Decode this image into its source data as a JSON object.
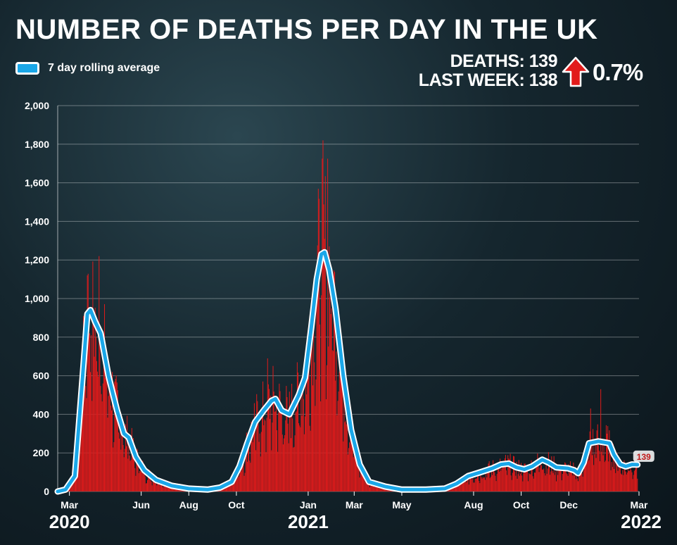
{
  "header": {
    "title": "NUMBER OF DEATHS PER DAY IN THE UK",
    "deaths_label": "DEATHS: 139",
    "last_week_label": "LAST WEEK: 138",
    "change_pct": "0.7%"
  },
  "legend": {
    "label": "7 day rolling average"
  },
  "colors": {
    "bars": "#e01b1b",
    "line": "#1aa7e8",
    "line_outline": "#ffffff",
    "arrow": "#e21b1b"
  },
  "chart_data": {
    "type": "bar",
    "title": "NUMBER OF DEATHS PER DAY IN THE UK",
    "ylim": [
      0,
      2000
    ],
    "y_ticks": [
      "0",
      "200",
      "400",
      "600",
      "800",
      "1,000",
      "1,200",
      "1,400",
      "1,600",
      "1,800",
      "2,000"
    ],
    "x_range": [
      "2020-02-15",
      "2022-03-01"
    ],
    "x_ticks": [
      {
        "label": "Mar",
        "date": "2020-03-01"
      },
      {
        "label": "Jun",
        "date": "2020-06-01"
      },
      {
        "label": "Aug",
        "date": "2020-08-01"
      },
      {
        "label": "Oct",
        "date": "2020-10-01"
      },
      {
        "label": "Jan",
        "date": "2021-01-01"
      },
      {
        "label": "Mar",
        "date": "2021-03-01"
      },
      {
        "label": "May",
        "date": "2021-05-01"
      },
      {
        "label": "Aug",
        "date": "2021-08-01"
      },
      {
        "label": "Oct",
        "date": "2021-10-01"
      },
      {
        "label": "Dec",
        "date": "2021-12-01"
      },
      {
        "label": "Mar",
        "date": "2022-03-01"
      }
    ],
    "year_labels": [
      {
        "label": "2020",
        "date": "2020-03-01"
      },
      {
        "label": "2021",
        "date": "2021-01-01"
      },
      {
        "label": "2022",
        "date": "2022-03-01"
      }
    ],
    "grid": true,
    "legend_position": "top-left",
    "series": [
      {
        "name": "7 day rolling average",
        "type": "line",
        "points": [
          [
            "2020-02-15",
            0
          ],
          [
            "2020-02-25",
            10
          ],
          [
            "2020-03-08",
            80
          ],
          [
            "2020-03-18",
            600
          ],
          [
            "2020-03-24",
            920
          ],
          [
            "2020-03-28",
            940
          ],
          [
            "2020-04-03",
            880
          ],
          [
            "2020-04-10",
            820
          ],
          [
            "2020-04-20",
            600
          ],
          [
            "2020-05-01",
            420
          ],
          [
            "2020-05-10",
            300
          ],
          [
            "2020-05-16",
            280
          ],
          [
            "2020-05-25",
            180
          ],
          [
            "2020-06-05",
            110
          ],
          [
            "2020-06-20",
            60
          ],
          [
            "2020-07-10",
            30
          ],
          [
            "2020-08-01",
            15
          ],
          [
            "2020-08-25",
            10
          ],
          [
            "2020-09-10",
            20
          ],
          [
            "2020-09-25",
            50
          ],
          [
            "2020-10-05",
            130
          ],
          [
            "2020-10-15",
            250
          ],
          [
            "2020-10-25",
            360
          ],
          [
            "2020-11-05",
            420
          ],
          [
            "2020-11-15",
            470
          ],
          [
            "2020-11-20",
            480
          ],
          [
            "2020-11-28",
            420
          ],
          [
            "2020-12-08",
            400
          ],
          [
            "2020-12-20",
            500
          ],
          [
            "2020-12-28",
            590
          ],
          [
            "2021-01-05",
            850
          ],
          [
            "2021-01-12",
            1100
          ],
          [
            "2021-01-18",
            1230
          ],
          [
            "2021-01-22",
            1240
          ],
          [
            "2021-01-28",
            1150
          ],
          [
            "2021-02-05",
            950
          ],
          [
            "2021-02-15",
            600
          ],
          [
            "2021-02-25",
            320
          ],
          [
            "2021-03-08",
            140
          ],
          [
            "2021-03-20",
            50
          ],
          [
            "2021-04-10",
            25
          ],
          [
            "2021-05-01",
            10
          ],
          [
            "2021-06-01",
            10
          ],
          [
            "2021-06-25",
            15
          ],
          [
            "2021-07-10",
            40
          ],
          [
            "2021-07-25",
            80
          ],
          [
            "2021-08-10",
            100
          ],
          [
            "2021-08-25",
            120
          ],
          [
            "2021-09-05",
            140
          ],
          [
            "2021-09-15",
            145
          ],
          [
            "2021-09-25",
            125
          ],
          [
            "2021-10-05",
            115
          ],
          [
            "2021-10-15",
            130
          ],
          [
            "2021-10-28",
            165
          ],
          [
            "2021-11-05",
            150
          ],
          [
            "2021-11-15",
            125
          ],
          [
            "2021-11-30",
            120
          ],
          [
            "2021-12-08",
            110
          ],
          [
            "2021-12-13",
            95
          ],
          [
            "2021-12-20",
            150
          ],
          [
            "2021-12-27",
            250
          ],
          [
            "2022-01-08",
            260
          ],
          [
            "2022-01-15",
            255
          ],
          [
            "2022-01-22",
            250
          ],
          [
            "2022-01-28",
            190
          ],
          [
            "2022-02-05",
            140
          ],
          [
            "2022-02-12",
            130
          ],
          [
            "2022-02-20",
            140
          ],
          [
            "2022-02-27",
            139
          ]
        ],
        "last_value_label": "139"
      },
      {
        "name": "Daily deaths",
        "type": "bar",
        "peaks": [
          [
            "2020-03-24",
            1120
          ],
          [
            "2020-04-08",
            1220
          ],
          [
            "2021-01-20",
            1820
          ],
          [
            "2021-01-26",
            1725
          ],
          [
            "2020-11-10",
            690
          ],
          [
            "2021-12-29",
            430
          ],
          [
            "2022-01-11",
            530
          ]
        ]
      }
    ]
  }
}
